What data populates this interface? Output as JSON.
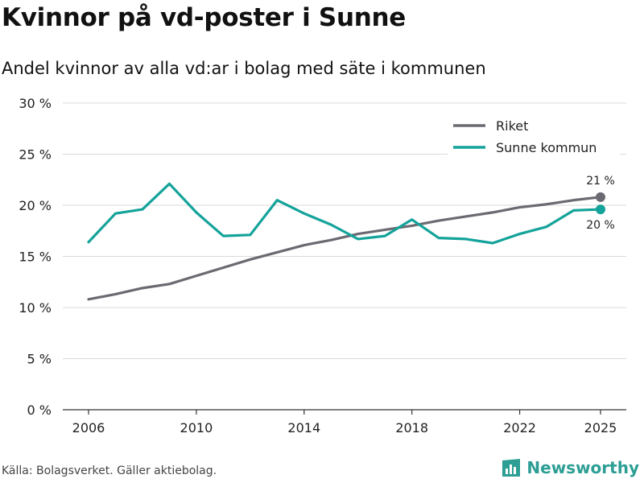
{
  "title": "Kvinnor på vd-poster i Sunne",
  "subtitle": "Andel kvinnor av alla vd:ar i bolag med säte i kommunen",
  "source": "Källa: Bolagsverket. Gäller aktiebolag.",
  "brand": "Newsworthy",
  "colors": {
    "riket": "#6b6a72",
    "sunne": "#14a39a",
    "grid": "#d9d9d9",
    "axis": "#333333",
    "brand": "#2c9e94"
  },
  "chart_data": {
    "type": "line",
    "title": "Kvinnor på vd-poster i Sunne",
    "subtitle": "Andel kvinnor av alla vd:ar i bolag med säte i kommunen",
    "xlabel": "",
    "ylabel": "",
    "x": [
      2006,
      2007,
      2008,
      2009,
      2010,
      2011,
      2012,
      2013,
      2014,
      2015,
      2016,
      2017,
      2018,
      2019,
      2020,
      2021,
      2022,
      2023,
      2024,
      2025
    ],
    "xticks": [
      2006,
      2010,
      2014,
      2018,
      2022,
      2025
    ],
    "xtick_labels": [
      "2006",
      "2010",
      "2014",
      "2018",
      "2022",
      "2025"
    ],
    "xlim": [
      2006,
      2025
    ],
    "ylim": [
      0,
      30
    ],
    "yticks": [
      0,
      5,
      10,
      15,
      20,
      25,
      30
    ],
    "ytick_labels": [
      "0 %",
      "5 %",
      "10 %",
      "15 %",
      "20 %",
      "25 %",
      "30 %"
    ],
    "grid": true,
    "legend_position": "top-right",
    "series": [
      {
        "name": "Riket",
        "color": "#6b6a72",
        "values": [
          10.8,
          11.3,
          11.9,
          12.3,
          13.1,
          13.9,
          14.7,
          15.4,
          16.1,
          16.6,
          17.2,
          17.6,
          18.0,
          18.5,
          18.9,
          19.3,
          19.8,
          20.1,
          20.5,
          20.8
        ],
        "end_label": "21 %"
      },
      {
        "name": "Sunne kommun",
        "color": "#14a39a",
        "values": [
          16.4,
          19.2,
          19.6,
          22.1,
          19.3,
          17.0,
          17.1,
          20.5,
          19.2,
          18.1,
          16.7,
          17.0,
          18.6,
          16.8,
          16.7,
          16.3,
          17.2,
          17.9,
          19.5,
          19.6
        ],
        "end_label": "20 %"
      }
    ]
  }
}
